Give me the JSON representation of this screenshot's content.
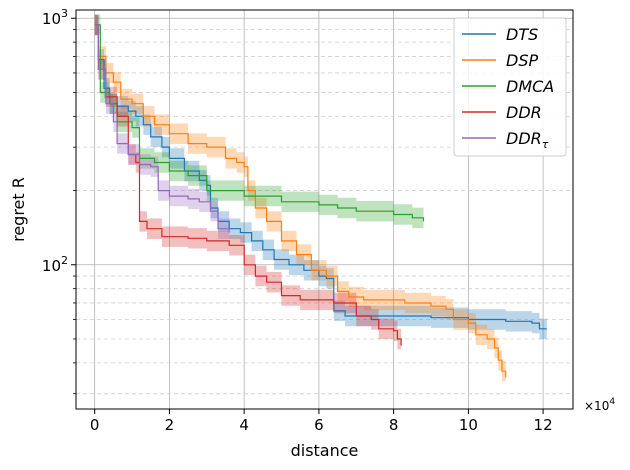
{
  "chart_data": {
    "type": "line",
    "xlabel": "distance",
    "ylabel": "regret R",
    "x_offset_label": {
      "base": "×10",
      "exponent": "4"
    },
    "xlim": [
      -0.5,
      12.8
    ],
    "ylim": [
      26,
      1080
    ],
    "y_scale": "log",
    "grid": "on (major solid, minor dashed)",
    "legend_position": "top-right",
    "x_ticks": [
      {
        "value": 0,
        "label": "0"
      },
      {
        "value": 2,
        "label": "2"
      },
      {
        "value": 4,
        "label": "4"
      },
      {
        "value": 6,
        "label": "6"
      },
      {
        "value": 8,
        "label": "8"
      },
      {
        "value": 10,
        "label": "10"
      },
      {
        "value": 12,
        "label": "12"
      }
    ],
    "y_ticks_major": [
      {
        "value": 100,
        "base": "10",
        "exponent": "2"
      },
      {
        "value": 1000,
        "base": "10",
        "exponent": "3"
      }
    ],
    "y_ticks_minor": [
      30,
      40,
      50,
      60,
      70,
      80,
      90,
      200,
      300,
      400,
      500,
      600,
      700,
      800,
      900
    ],
    "series": [
      {
        "name": "DTS",
        "name_sub": "",
        "color": "#1f77b4",
        "points": [
          [
            0,
            940
          ],
          [
            0.1,
            680
          ],
          [
            0.25,
            520
          ],
          [
            0.4,
            450
          ],
          [
            0.6,
            440
          ],
          [
            0.9,
            420
          ],
          [
            1.1,
            400
          ],
          [
            1.3,
            370
          ],
          [
            1.5,
            330
          ],
          [
            1.8,
            300
          ],
          [
            2,
            270
          ],
          [
            2.4,
            240
          ],
          [
            2.8,
            220
          ],
          [
            3,
            210
          ],
          [
            3.1,
            170
          ],
          [
            3.3,
            150
          ],
          [
            3.6,
            140
          ],
          [
            3.9,
            135
          ],
          [
            4.2,
            125
          ],
          [
            4.5,
            115
          ],
          [
            4.8,
            105
          ],
          [
            5.2,
            100
          ],
          [
            5.6,
            95
          ],
          [
            6,
            90
          ],
          [
            6.2,
            88
          ],
          [
            6.4,
            65
          ],
          [
            6.7,
            62
          ],
          [
            7,
            62
          ],
          [
            8,
            62
          ],
          [
            9,
            61
          ],
          [
            10,
            60
          ],
          [
            11,
            59
          ],
          [
            11.7,
            58
          ],
          [
            11.9,
            55
          ],
          [
            12.1,
            55
          ]
        ],
        "band_ratio": 1.1
      },
      {
        "name": "DSP",
        "name_sub": "",
        "color": "#ff7f0e",
        "points": [
          [
            0,
            940
          ],
          [
            0.1,
            700
          ],
          [
            0.3,
            600
          ],
          [
            0.5,
            550
          ],
          [
            0.7,
            470
          ],
          [
            1,
            450
          ],
          [
            1.3,
            400
          ],
          [
            1.6,
            370
          ],
          [
            2,
            340
          ],
          [
            2.5,
            310
          ],
          [
            3,
            300
          ],
          [
            3.5,
            270
          ],
          [
            3.8,
            260
          ],
          [
            4.0,
            250
          ],
          [
            4.1,
            200
          ],
          [
            4.3,
            170
          ],
          [
            4.6,
            150
          ],
          [
            5,
            125
          ],
          [
            5.4,
            110
          ],
          [
            5.8,
            95
          ],
          [
            6.2,
            90
          ],
          [
            6.5,
            78
          ],
          [
            6.8,
            74
          ],
          [
            7.2,
            72
          ],
          [
            8,
            72
          ],
          [
            8.3,
            70
          ],
          [
            9,
            68
          ],
          [
            9.4,
            66
          ],
          [
            9.6,
            60
          ],
          [
            10,
            58
          ],
          [
            10.2,
            52
          ],
          [
            10.5,
            50
          ],
          [
            10.7,
            46
          ],
          [
            10.8,
            41
          ],
          [
            10.9,
            37
          ],
          [
            11,
            35
          ]
        ],
        "band_ratio": 1.1
      },
      {
        "name": "DMCA",
        "name_sub": "",
        "color": "#2ca02c",
        "points": [
          [
            0,
            940
          ],
          [
            0.15,
            500
          ],
          [
            0.4,
            450
          ],
          [
            0.6,
            380
          ],
          [
            1,
            360
          ],
          [
            1.2,
            270
          ],
          [
            1.6,
            260
          ],
          [
            2,
            240
          ],
          [
            2.5,
            230
          ],
          [
            3,
            200
          ],
          [
            4,
            190
          ],
          [
            5,
            180
          ],
          [
            6,
            175
          ],
          [
            6.5,
            170
          ],
          [
            7,
            165
          ],
          [
            8,
            160
          ],
          [
            8.5,
            155
          ],
          [
            8.8,
            150
          ]
        ],
        "band_ratio": 1.1
      },
      {
        "name": "DDR",
        "name_sub": "",
        "color": "#d62728",
        "points": [
          [
            0,
            940
          ],
          [
            0.1,
            620
          ],
          [
            0.3,
            480
          ],
          [
            0.6,
            400
          ],
          [
            0.9,
            280
          ],
          [
            1.1,
            260
          ],
          [
            1.2,
            150
          ],
          [
            1.4,
            140
          ],
          [
            1.8,
            130
          ],
          [
            2.5,
            128
          ],
          [
            3,
            125
          ],
          [
            3.6,
            120
          ],
          [
            4.0,
            100
          ],
          [
            4.3,
            90
          ],
          [
            4.6,
            85
          ],
          [
            5,
            75
          ],
          [
            5.5,
            72
          ],
          [
            6,
            72
          ],
          [
            6.4,
            70
          ],
          [
            7,
            62
          ],
          [
            7.4,
            60
          ],
          [
            7.6,
            55
          ],
          [
            8.0,
            54
          ],
          [
            8.1,
            50
          ],
          [
            8.2,
            47
          ]
        ],
        "band_ratio": 1.1
      },
      {
        "name": "DDR",
        "name_sub": "τ",
        "color": "#9467bd",
        "points": [
          [
            0,
            940
          ],
          [
            0.1,
            620
          ],
          [
            0.3,
            450
          ],
          [
            0.5,
            380
          ],
          [
            0.6,
            310
          ],
          [
            0.9,
            280
          ],
          [
            1.2,
            255
          ],
          [
            1.5,
            250
          ],
          [
            1.7,
            200
          ],
          [
            2,
            190
          ],
          [
            2.5,
            185
          ],
          [
            2.8,
            180
          ],
          [
            3.1,
            165
          ],
          [
            3.3,
            140
          ],
          [
            3.6,
            135
          ]
        ],
        "band_ratio": 1.1
      }
    ]
  }
}
